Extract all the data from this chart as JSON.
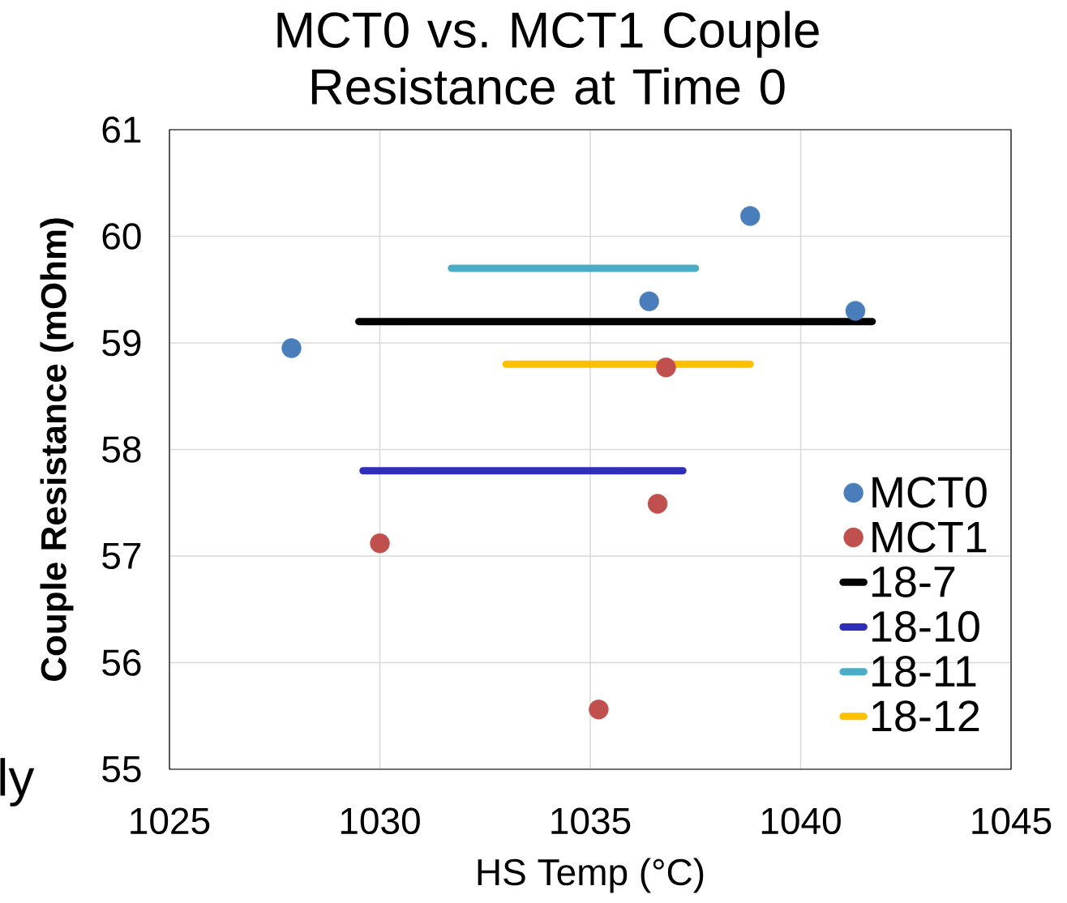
{
  "chart_data": {
    "type": "scatter",
    "title": "MCT0 vs. MCT1 Couple Resistance at Time 0",
    "xlabel": "HS Temp (°C)",
    "ylabel": "Couple Resistance (mOhm)",
    "xlim": [
      1025,
      1045
    ],
    "xticks": [
      1025,
      1030,
      1035,
      1040,
      1045
    ],
    "ylim": [
      55,
      61
    ],
    "yticks": [
      55,
      56,
      57,
      58,
      59,
      60,
      61
    ],
    "grid": true,
    "legend": "bottom right",
    "marker": "circle",
    "series": [
      {
        "name": "MCT0",
        "color": "#4a7ebb",
        "x": [
          1038.8,
          1036.4,
          1041.3,
          1027.9
        ],
        "values": [
          60.19,
          59.39,
          59.3,
          58.95
        ]
      },
      {
        "name": "MCT1",
        "color": "#c0504d",
        "x": [
          1036.8,
          1036.6,
          1030.0,
          1035.2
        ],
        "values": [
          58.77,
          57.49,
          57.12,
          55.56
        ]
      },
      {
        "name": "18-7",
        "type": "line",
        "marker": "none",
        "line_style": "solid",
        "color": "#000000",
        "x": [
          1029.5,
          1041.7
        ],
        "values": [
          59.2,
          59.2
        ]
      },
      {
        "name": "18-10",
        "type": "line",
        "marker": "none",
        "line_style": "solid",
        "color": "#2e2eb8",
        "x": [
          1029.6,
          1037.2
        ],
        "values": [
          57.8,
          57.8
        ]
      },
      {
        "name": "18-11",
        "type": "line",
        "marker": "none",
        "line_style": "solid",
        "color": "#4bacc6",
        "x": [
          1031.7,
          1037.5
        ],
        "values": [
          59.7,
          59.7
        ]
      },
      {
        "name": "18-12",
        "type": "line",
        "marker": "none",
        "line_style": "solid",
        "color": "#ffc000",
        "x": [
          1033.0,
          1038.8
        ],
        "values": [
          58.8,
          58.8
        ]
      }
    ],
    "annotations": [
      "ly"
    ]
  }
}
